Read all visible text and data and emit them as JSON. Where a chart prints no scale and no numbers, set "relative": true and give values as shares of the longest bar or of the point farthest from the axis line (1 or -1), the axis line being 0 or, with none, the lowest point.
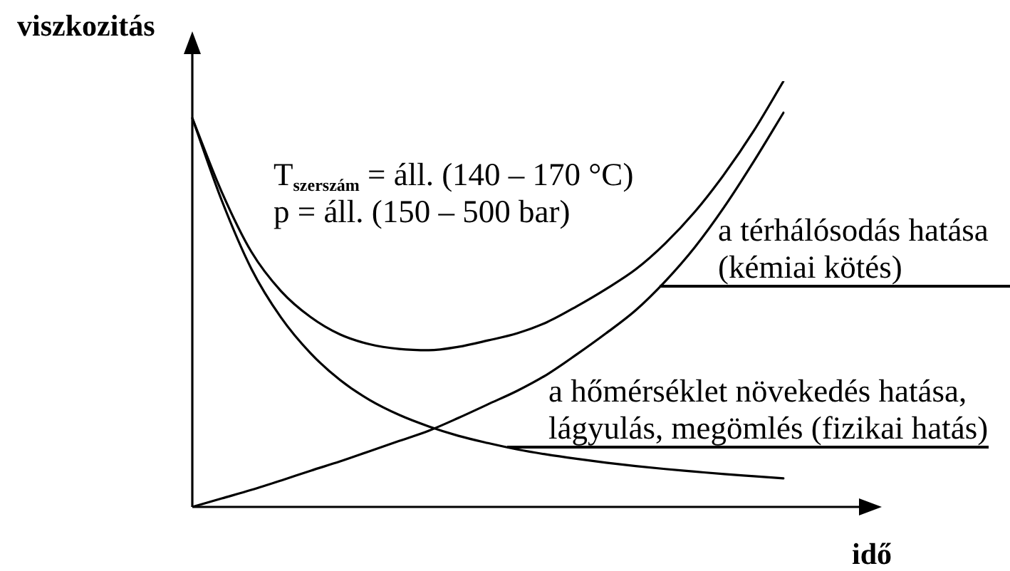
{
  "chart_data": {
    "type": "line",
    "relative": true,
    "ylabel": "viszkozitás",
    "xlabel": "idő",
    "annotations": [
      "T$_{szerszám}$ = áll. (140 – 170 °C)",
      "p = áll. (150 – 500 bar)"
    ],
    "categories": [
      null,
      null,
      null,
      null,
      null,
      null,
      null,
      null,
      null,
      null,
      null,
      null,
      null,
      null,
      null,
      null,
      null,
      null,
      null,
      null,
      null
    ],
    "series": [
      {
        "name": "a hőmérséklet növekedés hatása,\nlágyulás, megömlés (fizikai hatás)",
        "color": "#000000",
        "values": [
          0.913,
          0.719,
          0.559,
          0.445,
          0.361,
          0.298,
          0.251,
          0.216,
          0.189,
          0.167,
          0.15,
          0.135,
          0.123,
          0.113,
          0.104,
          0.096,
          0.089,
          0.083,
          0.077,
          0.072,
          0.067
        ]
      },
      {
        "name": "a térhálósodás hatása\n(kémiai kötés)",
        "color": "#000000",
        "values": [
          0,
          0.02,
          0.04,
          0.062,
          0.085,
          0.107,
          0.131,
          0.155,
          0.179,
          0.209,
          0.241,
          0.273,
          0.311,
          0.358,
          0.408,
          0.462,
          0.53,
          0.61,
          0.705,
          0.812,
          0.926
        ]
      },
      {
        "color": "#000000",
        "values": [
          0.913,
          0.739,
          0.599,
          0.507,
          0.446,
          0.405,
          0.382,
          0.371,
          0.368,
          0.376,
          0.391,
          0.408,
          0.434,
          0.471,
          0.512,
          0.558,
          0.619,
          0.693,
          0.782,
          0.884,
          1
        ]
      }
    ]
  }
}
